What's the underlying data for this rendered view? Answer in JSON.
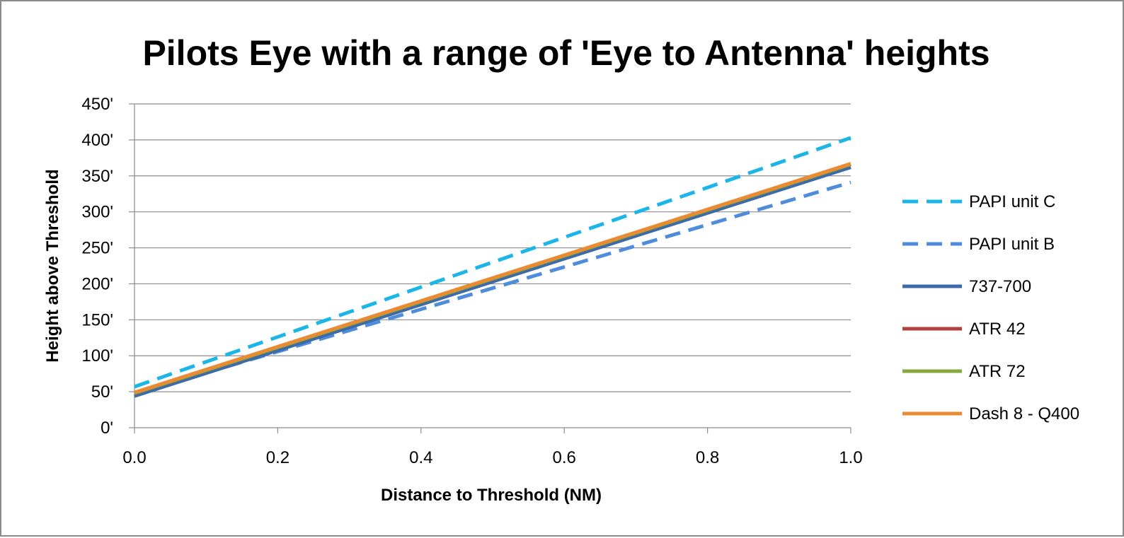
{
  "chart_data": {
    "type": "line",
    "title": "Pilots Eye with a range of 'Eye to Antenna' heights",
    "xlabel": "Distance to Threshold (NM)",
    "ylabel": "Height above Threshold",
    "xlim": [
      0,
      1
    ],
    "ylim": [
      0,
      450
    ],
    "x_ticks": [
      "0.0",
      "0.2",
      "0.4",
      "0.6",
      "0.8",
      "1.0"
    ],
    "x_tick_values": [
      0,
      0.2,
      0.4,
      0.6,
      0.8,
      1.0
    ],
    "y_ticks": [
      "0'",
      "50'",
      "100'",
      "150'",
      "200'",
      "250'",
      "300'",
      "350'",
      "400'",
      "450'"
    ],
    "y_tick_values": [
      0,
      50,
      100,
      150,
      200,
      250,
      300,
      350,
      400,
      450
    ],
    "grid": "horizontal",
    "legend_position": "right",
    "series": [
      {
        "name": "PAPI unit C",
        "x": [
          0,
          1
        ],
        "y": [
          57,
          403
        ],
        "color": "#1cb5e8",
        "dash": "dashed"
      },
      {
        "name": "PAPI unit B",
        "x": [
          0,
          1
        ],
        "y": [
          47,
          341
        ],
        "color": "#4f8ddc",
        "dash": "dashed"
      },
      {
        "name": "737-700",
        "x": [
          0,
          1
        ],
        "y": [
          44,
          362
        ],
        "color": "#3d6aa8",
        "dash": "solid"
      },
      {
        "name": "ATR 42",
        "x": [
          0,
          1
        ],
        "y": [
          48,
          366
        ],
        "color": "#b0413e",
        "dash": "solid"
      },
      {
        "name": "ATR 72",
        "x": [
          0,
          1
        ],
        "y": [
          48,
          366
        ],
        "color": "#86a93c",
        "dash": "solid"
      },
      {
        "name": "Dash 8 - Q400",
        "x": [
          0,
          1
        ],
        "y": [
          49,
          367
        ],
        "color": "#ea8a33",
        "dash": "solid"
      }
    ]
  }
}
